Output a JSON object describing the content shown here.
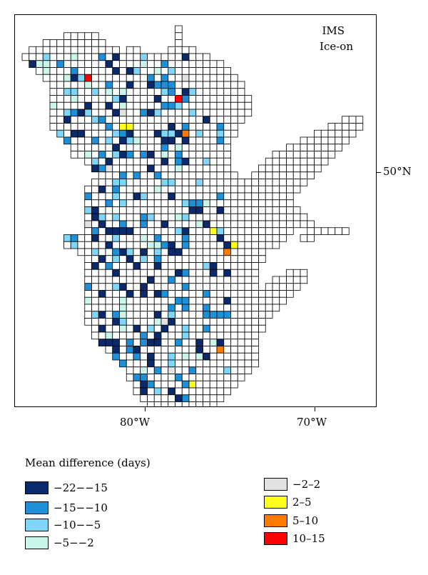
{
  "title": {
    "line1": "IMS",
    "line2": "Ice-on"
  },
  "axes": {
    "lat_label": "50°N",
    "lon_labels": [
      "80°W",
      "70°W"
    ]
  },
  "legend": {
    "title": "Mean difference (days)",
    "items": [
      {
        "label": "−22−−15",
        "color": "#0a2a6b"
      },
      {
        "label": "−15−−10",
        "color": "#1e90d8"
      },
      {
        "label": "−10−−5",
        "color": "#7fd6f7"
      },
      {
        "label": "−5−−2",
        "color": "#c9f5ea"
      },
      {
        "label": "−2–2",
        "color": "#e2e2e2"
      },
      {
        "label": "2–5",
        "color": "#ffff1a"
      },
      {
        "label": "5–10",
        "color": "#ff7a00"
      },
      {
        "label": "10–15",
        "color": "#ff0000"
      }
    ]
  },
  "colors": {
    "empty_cell": "#ffffff",
    "cell_border": "#000000"
  }
}
